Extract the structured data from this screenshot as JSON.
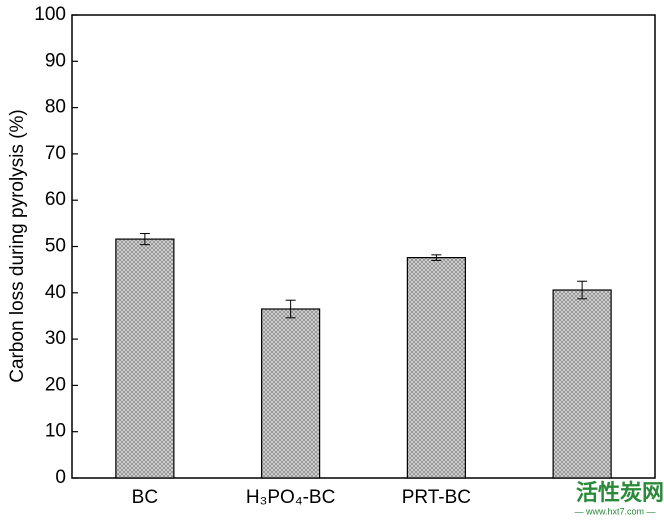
{
  "chart_data": {
    "type": "bar",
    "y_label": "Carbon loss during pyrolysis (%)",
    "categories": [
      "BC",
      "H₃PO₄-BC",
      "PRT-BC",
      null
    ],
    "values": [
      51.6,
      36.5,
      47.6,
      40.6
    ],
    "errors": [
      1.2,
      1.9,
      0.6,
      1.9
    ],
    "color": "#c8c8c8",
    "ylim": [
      0,
      100
    ],
    "yticks": [
      0,
      10,
      20,
      30,
      40,
      50,
      60,
      70,
      80,
      90,
      100
    ],
    "grid": false
  },
  "watermark": {
    "title": "活性炭网",
    "url": "— www.hxt7.com —"
  }
}
